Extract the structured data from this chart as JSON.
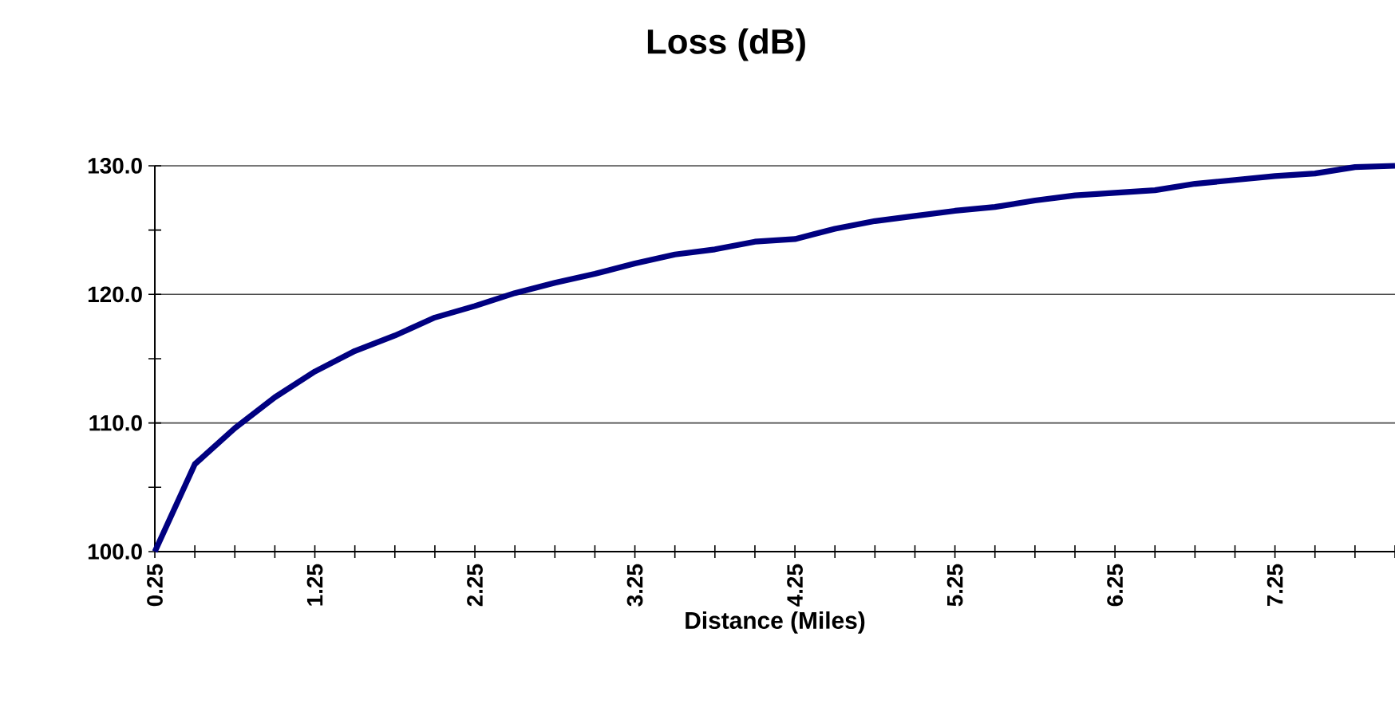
{
  "chart_data": {
    "type": "line",
    "title": "Loss (dB)",
    "xlabel": "Distance (Miles)",
    "x": [
      0.25,
      0.5,
      0.75,
      1.0,
      1.25,
      1.5,
      1.75,
      2.0,
      2.25,
      2.5,
      2.75,
      3.0,
      3.25,
      3.5,
      3.75,
      4.0,
      4.25,
      4.5,
      4.75,
      5.0,
      5.25,
      5.5,
      5.75,
      6.0,
      6.25,
      6.5,
      6.75,
      7.0,
      7.25,
      7.5,
      7.75,
      8.0
    ],
    "series": [
      {
        "color": "#000080",
        "values": [
          100.0,
          106.8,
          109.6,
          112.0,
          114.0,
          115.6,
          116.8,
          118.2,
          119.1,
          120.1,
          120.9,
          121.6,
          122.4,
          123.1,
          123.5,
          124.1,
          124.3,
          125.1,
          125.7,
          126.1,
          126.5,
          126.8,
          127.3,
          127.7,
          127.9,
          128.1,
          128.6,
          128.9,
          129.2,
          129.4,
          129.9,
          130.0
        ]
      }
    ],
    "xlim": [
      0.25,
      8.0
    ],
    "xticks": [
      {
        "value": 0.25,
        "label": "0.25"
      },
      {
        "value": 0.5,
        "label": null
      },
      {
        "value": 0.75,
        "label": null
      },
      {
        "value": 1.0,
        "label": null
      },
      {
        "value": 1.25,
        "label": "1.25"
      },
      {
        "value": 1.5,
        "label": null
      },
      {
        "value": 1.75,
        "label": null
      },
      {
        "value": 2.0,
        "label": null
      },
      {
        "value": 2.25,
        "label": "2.25"
      },
      {
        "value": 2.5,
        "label": null
      },
      {
        "value": 2.75,
        "label": null
      },
      {
        "value": 3.0,
        "label": null
      },
      {
        "value": 3.25,
        "label": "3.25"
      },
      {
        "value": 3.5,
        "label": null
      },
      {
        "value": 3.75,
        "label": null
      },
      {
        "value": 4.0,
        "label": null
      },
      {
        "value": 4.25,
        "label": "4.25"
      },
      {
        "value": 4.5,
        "label": null
      },
      {
        "value": 4.75,
        "label": null
      },
      {
        "value": 5.0,
        "label": null
      },
      {
        "value": 5.25,
        "label": "5.25"
      },
      {
        "value": 5.5,
        "label": null
      },
      {
        "value": 5.75,
        "label": null
      },
      {
        "value": 6.0,
        "label": null
      },
      {
        "value": 6.25,
        "label": "6.25"
      },
      {
        "value": 6.5,
        "label": null
      },
      {
        "value": 6.75,
        "label": null
      },
      {
        "value": 7.0,
        "label": null
      },
      {
        "value": 7.25,
        "label": "7.25"
      },
      {
        "value": 7.5,
        "label": null
      },
      {
        "value": 7.75,
        "label": null
      },
      {
        "value": 8.0,
        "label": null
      }
    ],
    "ylim": [
      100,
      130
    ],
    "yticks": [
      {
        "value": 100,
        "label": "100.0"
      },
      {
        "value": 105,
        "label": null
      },
      {
        "value": 110,
        "label": "110.0"
      },
      {
        "value": 115,
        "label": null
      },
      {
        "value": 120,
        "label": "120.0"
      },
      {
        "value": 125,
        "label": null
      },
      {
        "value": 130,
        "label": "130.0"
      }
    ],
    "grid": "y"
  }
}
